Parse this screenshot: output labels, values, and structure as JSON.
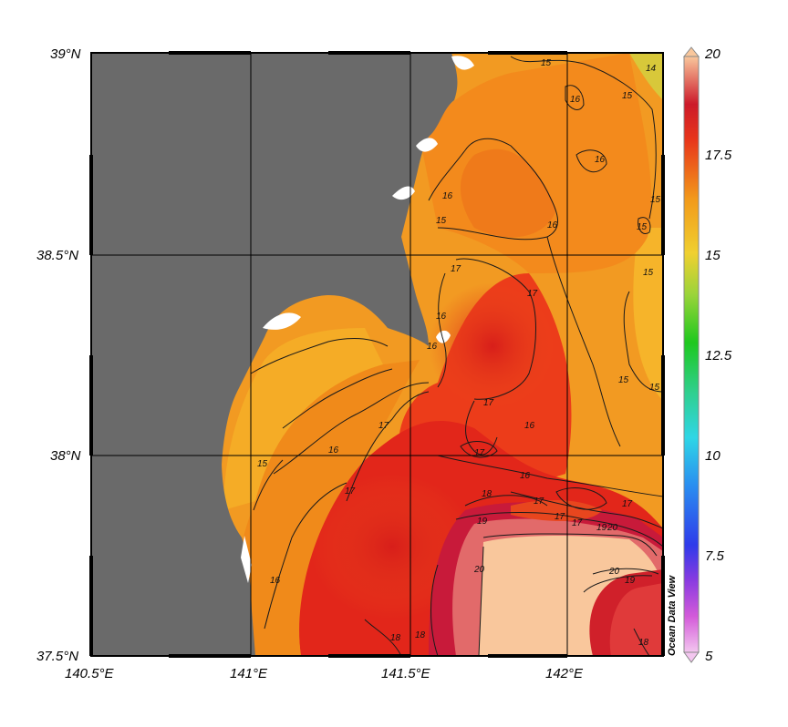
{
  "map": {
    "lat_labels": [
      "39°N",
      "38.5°N",
      "38°N",
      "37.5°N"
    ],
    "lon_labels": [
      "140.5°E",
      "141°E",
      "141.5°E",
      "142°E"
    ],
    "contour_labels": [
      "14",
      "15",
      "15",
      "16",
      "16",
      "16",
      "15",
      "15",
      "15",
      "16",
      "16",
      "15",
      "17",
      "17",
      "17",
      "16",
      "15",
      "15",
      "17",
      "16",
      "17",
      "17",
      "16",
      "16",
      "15",
      "18",
      "17",
      "17",
      "17",
      "19",
      "20",
      "20",
      "19",
      "20",
      "16",
      "17",
      "18",
      "18",
      "19",
      "18"
    ]
  },
  "colorbar": {
    "ticks": [
      "20",
      "17.5",
      "15",
      "12.5",
      "10",
      "7.5",
      "5"
    ],
    "min": 5,
    "max": 20
  },
  "watermark": "Ocean Data View",
  "colors": {
    "land": "#6a6a6a",
    "sea_warm": "#f59a1a",
    "sea_hot": "#e0231a",
    "sea_max": "#f9c79c"
  }
}
